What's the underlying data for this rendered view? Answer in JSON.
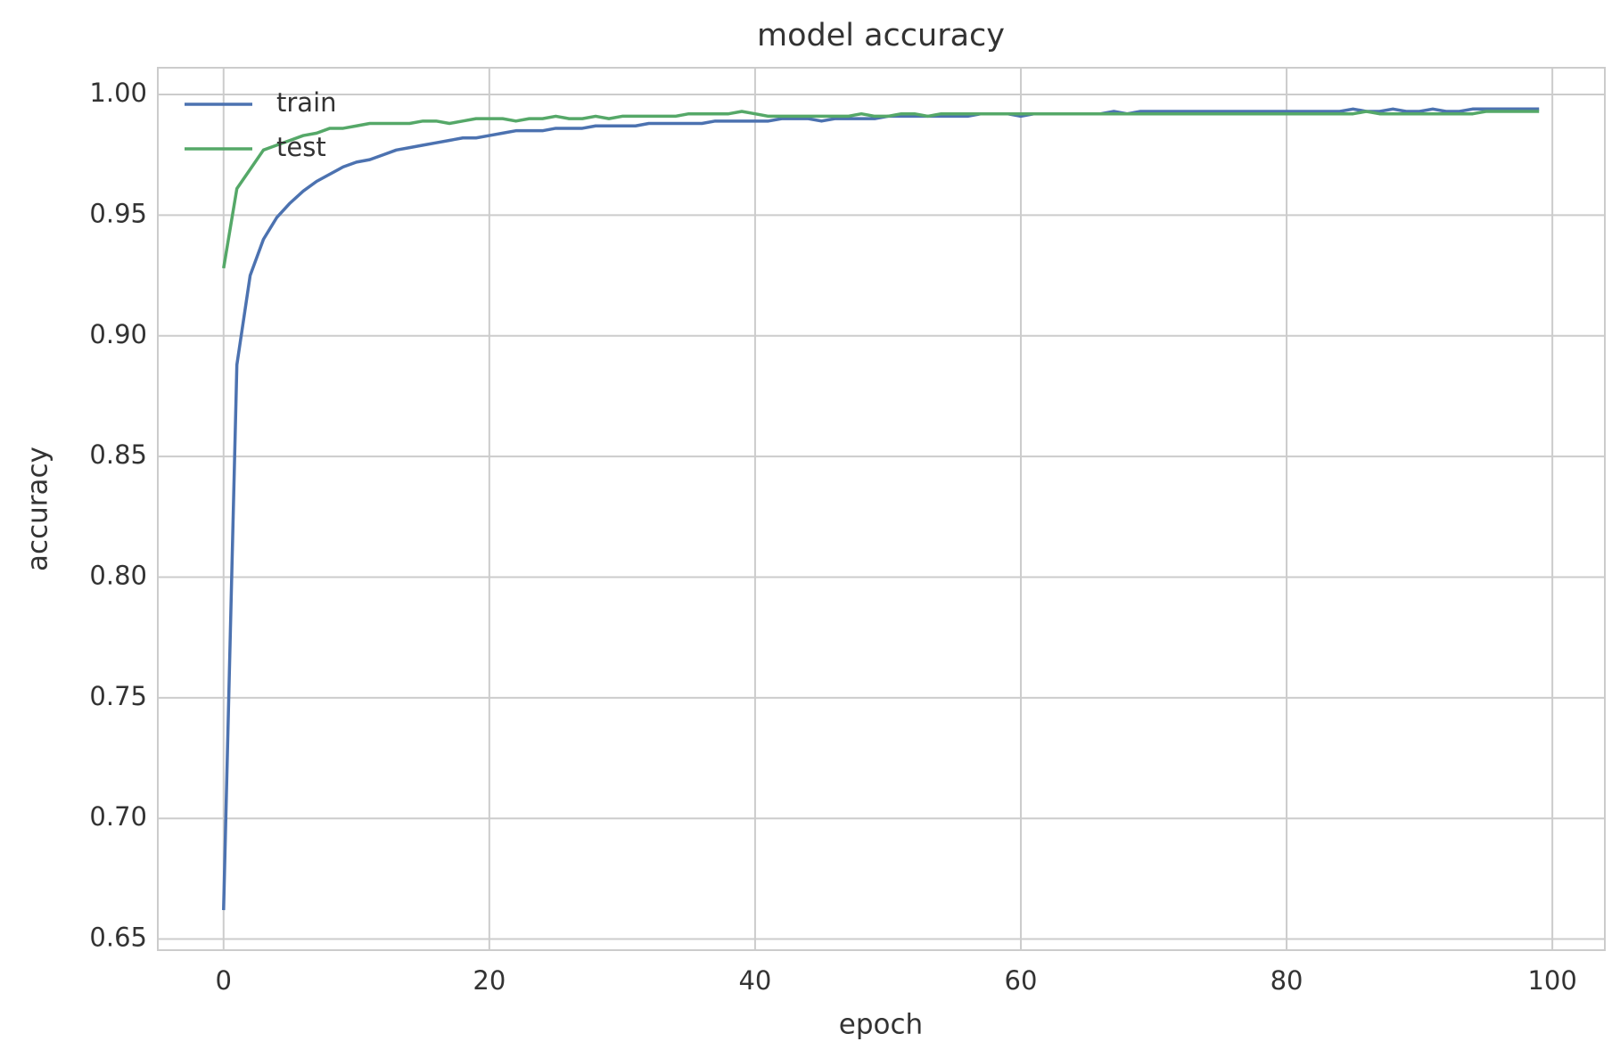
{
  "chart_data": {
    "type": "line",
    "title": "model accuracy",
    "x_label": "epoch",
    "y_label": "accuracy",
    "x": [
      0,
      1,
      2,
      3,
      4,
      5,
      6,
      7,
      8,
      9,
      10,
      11,
      12,
      13,
      14,
      15,
      16,
      17,
      18,
      19,
      20,
      21,
      22,
      23,
      24,
      25,
      26,
      27,
      28,
      29,
      30,
      31,
      32,
      33,
      34,
      35,
      36,
      37,
      38,
      39,
      40,
      41,
      42,
      43,
      44,
      45,
      46,
      47,
      48,
      49,
      50,
      51,
      52,
      53,
      54,
      55,
      56,
      57,
      58,
      59,
      60,
      61,
      62,
      63,
      64,
      65,
      66,
      67,
      68,
      69,
      70,
      71,
      72,
      73,
      74,
      75,
      76,
      77,
      78,
      79,
      80,
      81,
      82,
      83,
      84,
      85,
      86,
      87,
      88,
      89,
      90,
      91,
      92,
      93,
      94,
      95,
      96,
      97,
      98,
      99
    ],
    "series": [
      {
        "name": "train",
        "color": "#4c72b0",
        "values": [
          0.662,
          0.888,
          0.925,
          0.94,
          0.949,
          0.955,
          0.96,
          0.964,
          0.967,
          0.97,
          0.972,
          0.973,
          0.975,
          0.977,
          0.978,
          0.979,
          0.98,
          0.981,
          0.982,
          0.982,
          0.983,
          0.984,
          0.985,
          0.985,
          0.985,
          0.986,
          0.986,
          0.986,
          0.987,
          0.987,
          0.987,
          0.987,
          0.988,
          0.988,
          0.988,
          0.988,
          0.988,
          0.989,
          0.989,
          0.989,
          0.989,
          0.989,
          0.99,
          0.99,
          0.99,
          0.989,
          0.99,
          0.99,
          0.99,
          0.99,
          0.991,
          0.991,
          0.991,
          0.991,
          0.991,
          0.991,
          0.991,
          0.992,
          0.992,
          0.992,
          0.991,
          0.992,
          0.992,
          0.992,
          0.992,
          0.992,
          0.992,
          0.993,
          0.992,
          0.993,
          0.993,
          0.993,
          0.993,
          0.993,
          0.993,
          0.993,
          0.993,
          0.993,
          0.993,
          0.993,
          0.993,
          0.993,
          0.993,
          0.993,
          0.993,
          0.994,
          0.993,
          0.993,
          0.994,
          0.993,
          0.993,
          0.994,
          0.993,
          0.993,
          0.994,
          0.994,
          0.994,
          0.994,
          0.994,
          0.994
        ]
      },
      {
        "name": "test",
        "color": "#55a868",
        "values": [
          0.928,
          0.961,
          0.969,
          0.977,
          0.979,
          0.981,
          0.983,
          0.984,
          0.986,
          0.986,
          0.987,
          0.988,
          0.988,
          0.988,
          0.988,
          0.989,
          0.989,
          0.988,
          0.989,
          0.99,
          0.99,
          0.99,
          0.989,
          0.99,
          0.99,
          0.991,
          0.99,
          0.99,
          0.991,
          0.99,
          0.991,
          0.991,
          0.991,
          0.991,
          0.991,
          0.992,
          0.992,
          0.992,
          0.992,
          0.993,
          0.992,
          0.991,
          0.991,
          0.991,
          0.991,
          0.991,
          0.991,
          0.991,
          0.992,
          0.991,
          0.991,
          0.992,
          0.992,
          0.991,
          0.992,
          0.992,
          0.992,
          0.992,
          0.992,
          0.992,
          0.992,
          0.992,
          0.992,
          0.992,
          0.992,
          0.992,
          0.992,
          0.992,
          0.992,
          0.992,
          0.992,
          0.992,
          0.992,
          0.992,
          0.992,
          0.992,
          0.992,
          0.992,
          0.992,
          0.992,
          0.992,
          0.992,
          0.992,
          0.992,
          0.992,
          0.992,
          0.993,
          0.992,
          0.992,
          0.992,
          0.992,
          0.992,
          0.992,
          0.992,
          0.992,
          0.993,
          0.993,
          0.993,
          0.993,
          0.993
        ]
      }
    ],
    "xlim": [
      -4.95,
      103.95
    ],
    "xticks": [
      0,
      20,
      40,
      60,
      80,
      100
    ],
    "ylim": [
      0.6454,
      1.0111
    ],
    "yticks": [
      0.65,
      {
        "value": 0.7,
        "label": "0.70"
      },
      0.75,
      {
        "value": 0.8,
        "label": "0.80"
      },
      0.85,
      {
        "value": 0.9,
        "label": "0.90"
      },
      0.95,
      {
        "value": 1.0,
        "label": "1.00"
      }
    ],
    "grid": true,
    "legend": "upper-left"
  }
}
